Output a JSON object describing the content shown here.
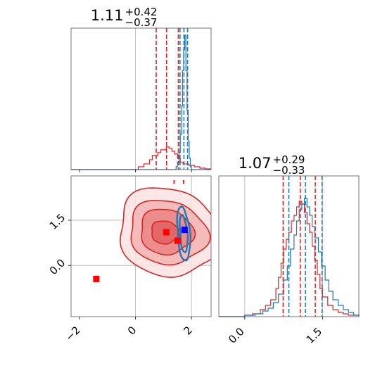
{
  "chart_data": {
    "type": "corner",
    "colors": {
      "red": "#d62728",
      "blue": "#1f77b4",
      "marker_blue": "#0000ff",
      "marker_red": "#ff0000"
    },
    "panels": [
      {
        "id": "hist-x",
        "type": "step-histogram",
        "title_main": "1.11",
        "title_sup": "+0.42",
        "title_sub": "−0.37",
        "xlim": [
          -2.3,
          2.7
        ],
        "grid_x": [
          0
        ],
        "red_quantiles": [
          0.74,
          1.11,
          1.53
        ],
        "blue_quantiles": [
          1.59,
          1.73,
          1.86
        ],
        "red_steps": [
          [
            -2.3,
            0
          ],
          [
            -0.1,
            0
          ],
          [
            0.1,
            0.02
          ],
          [
            0.3,
            0.04
          ],
          [
            0.5,
            0.07
          ],
          [
            0.6,
            0.1
          ],
          [
            0.8,
            0.12
          ],
          [
            0.9,
            0.14
          ],
          [
            1.1,
            0.16
          ],
          [
            1.2,
            0.15
          ],
          [
            1.3,
            0.13
          ],
          [
            1.4,
            0.11
          ],
          [
            1.5,
            0.08
          ],
          [
            1.6,
            0.05
          ],
          [
            1.7,
            0.04
          ],
          [
            1.9,
            0.03
          ],
          [
            2.1,
            0.02
          ],
          [
            2.3,
            0.01
          ],
          [
            2.5,
            0.005
          ],
          [
            2.7,
            0.005
          ]
        ],
        "blue_steps": [
          [
            -2.3,
            0
          ],
          [
            1.4,
            0
          ],
          [
            1.45,
            0.02
          ],
          [
            1.5,
            0.05
          ],
          [
            1.55,
            0.12
          ],
          [
            1.6,
            0.25
          ],
          [
            1.65,
            0.45
          ],
          [
            1.68,
            0.7
          ],
          [
            1.72,
            0.85
          ],
          [
            1.76,
            0.95
          ],
          [
            1.8,
            0.7
          ],
          [
            1.84,
            0.42
          ],
          [
            1.88,
            0.2
          ],
          [
            1.92,
            0.08
          ],
          [
            1.96,
            0.02
          ],
          [
            2.0,
            0
          ],
          [
            2.7,
            0
          ]
        ],
        "ylim": [
          0,
          1.0
        ]
      },
      {
        "id": "scatter-2d",
        "type": "contour",
        "xlim": [
          -2.3,
          2.7
        ],
        "ylim": [
          -1.7,
          2.97
        ],
        "x_ticks": [
          -2,
          0,
          2
        ],
        "x_ticklabels": [
          "−2",
          "0",
          "2"
        ],
        "y_ticks": [
          0.0,
          1.5
        ],
        "y_ticklabels": [
          "0.0",
          "1.5"
        ],
        "grid_x": [
          0,
          2
        ],
        "grid_y": [
          0,
          1.5
        ],
        "red_contours": [
          {
            "cx": 1.2,
            "cy": 1.1,
            "rx": 1.85,
            "ry": 1.45,
            "rot": -12
          },
          {
            "cx": 1.15,
            "cy": 1.1,
            "rx": 1.4,
            "ry": 1.05,
            "rot": -10
          },
          {
            "cx": 1.1,
            "cy": 1.12,
            "rx": 0.95,
            "ry": 0.75,
            "rot": -8
          },
          {
            "cx": 1.05,
            "cy": 1.1,
            "rx": 0.5,
            "ry": 0.38,
            "rot": -5
          }
        ],
        "blue_contours": [
          {
            "cx": 1.72,
            "cy": 1.05,
            "rx": 0.22,
            "ry": 0.9,
            "rot": 5
          },
          {
            "cx": 1.72,
            "cy": 1.05,
            "rx": 0.13,
            "ry": 0.62,
            "rot": 5
          }
        ],
        "markers": [
          {
            "x": 1.75,
            "y": 1.18,
            "color": "marker_blue"
          },
          {
            "x": 1.1,
            "y": 1.1,
            "color": "marker_red"
          },
          {
            "x": 1.5,
            "y": 0.82,
            "color": "marker_red"
          },
          {
            "x": -1.4,
            "y": -0.45,
            "color": "marker_red"
          }
        ],
        "red_tick_marks_x": [
          1.38,
          1.72
        ]
      },
      {
        "id": "hist-y",
        "type": "step-histogram",
        "title_main": "1.07",
        "title_sup": "+0.29",
        "title_sub": "−0.33",
        "xlim": [
          -0.5,
          2.2
        ],
        "x_ticks": [
          0.0,
          1.5
        ],
        "x_ticklabels": [
          "0.0",
          "1.5"
        ],
        "grid_x": [
          0,
          1.5
        ],
        "red_quantiles": [
          0.74,
          1.07,
          1.36
        ],
        "blue_quantiles": [
          0.85,
          1.17,
          1.49
        ],
        "red_steps": [
          [
            -0.5,
            0
          ],
          [
            0.0,
            0.01
          ],
          [
            0.15,
            0.02
          ],
          [
            0.3,
            0.05
          ],
          [
            0.4,
            0.08
          ],
          [
            0.5,
            0.12
          ],
          [
            0.6,
            0.2
          ],
          [
            0.65,
            0.28
          ],
          [
            0.7,
            0.38
          ],
          [
            0.75,
            0.48
          ],
          [
            0.8,
            0.55
          ],
          [
            0.85,
            0.6
          ],
          [
            0.9,
            0.68
          ],
          [
            0.95,
            0.72
          ],
          [
            1.0,
            0.78
          ],
          [
            1.05,
            0.82
          ],
          [
            1.1,
            0.8
          ],
          [
            1.15,
            0.74
          ],
          [
            1.2,
            0.66
          ],
          [
            1.25,
            0.6
          ],
          [
            1.3,
            0.5
          ],
          [
            1.35,
            0.4
          ],
          [
            1.4,
            0.3
          ],
          [
            1.45,
            0.2
          ],
          [
            1.5,
            0.14
          ],
          [
            1.6,
            0.08
          ],
          [
            1.7,
            0.05
          ],
          [
            1.8,
            0.03
          ],
          [
            1.9,
            0.02
          ],
          [
            2.0,
            0.01
          ],
          [
            2.2,
            0
          ]
        ],
        "blue_steps": [
          [
            -0.5,
            0
          ],
          [
            0.0,
            0.01
          ],
          [
            0.2,
            0.02
          ],
          [
            0.35,
            0.04
          ],
          [
            0.45,
            0.06
          ],
          [
            0.55,
            0.1
          ],
          [
            0.65,
            0.16
          ],
          [
            0.75,
            0.26
          ],
          [
            0.82,
            0.36
          ],
          [
            0.88,
            0.48
          ],
          [
            0.95,
            0.58
          ],
          [
            1.0,
            0.68
          ],
          [
            1.05,
            0.76
          ],
          [
            1.1,
            0.8
          ],
          [
            1.15,
            0.84
          ],
          [
            1.2,
            0.78
          ],
          [
            1.25,
            0.72
          ],
          [
            1.3,
            0.64
          ],
          [
            1.35,
            0.56
          ],
          [
            1.42,
            0.46
          ],
          [
            1.48,
            0.36
          ],
          [
            1.55,
            0.26
          ],
          [
            1.62,
            0.18
          ],
          [
            1.7,
            0.12
          ],
          [
            1.8,
            0.08
          ],
          [
            1.9,
            0.05
          ],
          [
            2.0,
            0.03
          ],
          [
            2.1,
            0.01
          ],
          [
            2.2,
            0
          ]
        ],
        "ylim": [
          0,
          1.0
        ]
      }
    ]
  }
}
